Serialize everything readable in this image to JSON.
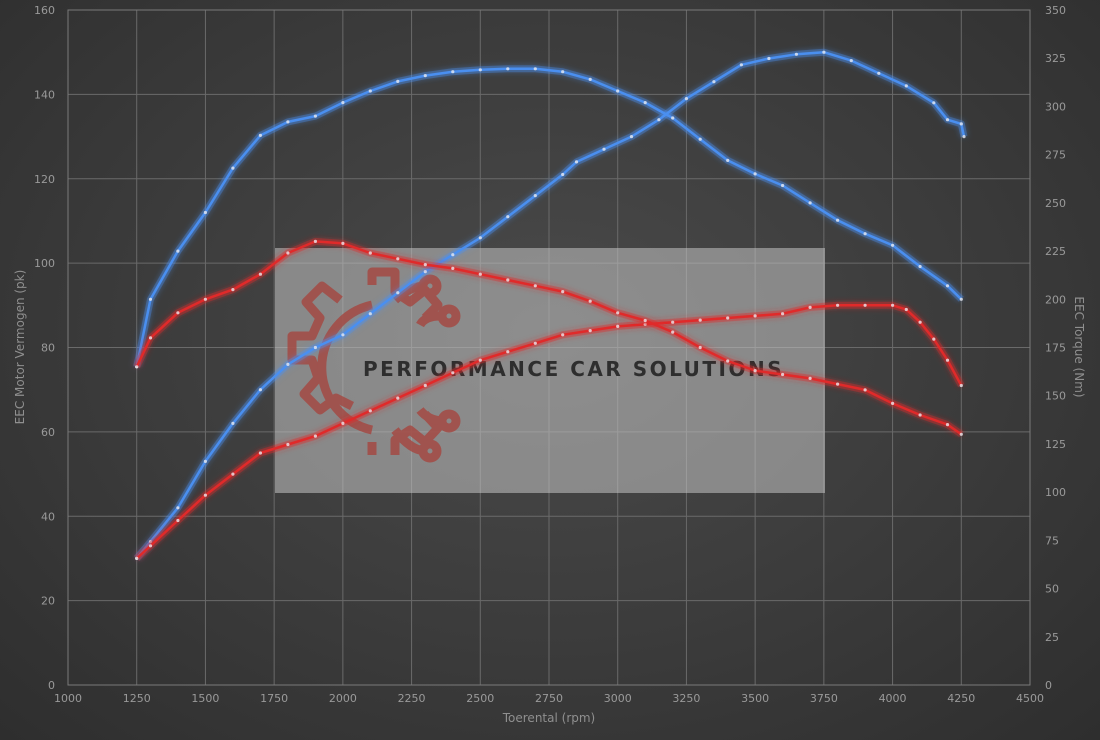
{
  "chart_data": {
    "type": "line",
    "xlabel": "Toerental (rpm)",
    "ylabel_left": "EEC Motor Vermogen (pk)",
    "ylabel_right": "EEC Torque (Nm)",
    "xlim": [
      1000,
      4500
    ],
    "ylim_left": [
      0,
      160
    ],
    "ylim_right": [
      0,
      350
    ],
    "x_ticks": [
      "1000",
      "1250",
      "1500",
      "1750",
      "2000",
      "2250",
      "2500",
      "2750",
      "3000",
      "3250",
      "3500",
      "3750",
      "4000",
      "4250",
      "4500"
    ],
    "y_left_ticks": [
      "0",
      "20",
      "40",
      "60",
      "80",
      "100",
      "120",
      "140",
      "160"
    ],
    "y_right_ticks": [
      "0",
      "25",
      "50",
      "75",
      "100",
      "125",
      "150",
      "175",
      "200",
      "225",
      "250",
      "275",
      "300",
      "325",
      "350"
    ],
    "grid": true,
    "series": [
      {
        "color": "#4a8ff0",
        "axis": "left",
        "points": [
          [
            1250,
            30
          ],
          [
            1300,
            34
          ],
          [
            1400,
            42
          ],
          [
            1500,
            53
          ],
          [
            1600,
            62
          ],
          [
            1700,
            70
          ],
          [
            1800,
            76
          ],
          [
            1900,
            80
          ],
          [
            2000,
            83
          ],
          [
            2100,
            88
          ],
          [
            2200,
            93
          ],
          [
            2300,
            98
          ],
          [
            2400,
            102
          ],
          [
            2500,
            106
          ],
          [
            2600,
            111
          ],
          [
            2700,
            116
          ],
          [
            2800,
            121
          ],
          [
            2850,
            124
          ],
          [
            2950,
            127
          ],
          [
            3050,
            130
          ],
          [
            3150,
            134
          ],
          [
            3250,
            139
          ],
          [
            3350,
            143
          ],
          [
            3450,
            147
          ],
          [
            3550,
            148.5
          ],
          [
            3650,
            149.5
          ],
          [
            3750,
            150
          ],
          [
            3850,
            148
          ],
          [
            3950,
            145
          ],
          [
            4050,
            142
          ],
          [
            4150,
            138
          ],
          [
            4200,
            134
          ],
          [
            4250,
            133
          ],
          [
            4260,
            130
          ]
        ]
      },
      {
        "color": "#4a8ff0",
        "axis": "right",
        "points": [
          [
            1250,
            165
          ],
          [
            1300,
            200
          ],
          [
            1400,
            225
          ],
          [
            1500,
            245
          ],
          [
            1600,
            268
          ],
          [
            1700,
            285
          ],
          [
            1800,
            292
          ],
          [
            1900,
            295
          ],
          [
            2000,
            302
          ],
          [
            2100,
            308
          ],
          [
            2200,
            313
          ],
          [
            2300,
            316
          ],
          [
            2400,
            318
          ],
          [
            2500,
            319
          ],
          [
            2600,
            319.5
          ],
          [
            2700,
            319.5
          ],
          [
            2800,
            318
          ],
          [
            2900,
            314
          ],
          [
            3000,
            308
          ],
          [
            3100,
            302
          ],
          [
            3200,
            294
          ],
          [
            3300,
            283
          ],
          [
            3400,
            272
          ],
          [
            3500,
            265
          ],
          [
            3600,
            259
          ],
          [
            3700,
            250
          ],
          [
            3800,
            241
          ],
          [
            3900,
            234
          ],
          [
            4000,
            228
          ],
          [
            4100,
            217
          ],
          [
            4200,
            207
          ],
          [
            4250,
            200
          ]
        ]
      },
      {
        "color": "#e02a2a",
        "axis": "left",
        "points": [
          [
            1250,
            30
          ],
          [
            1300,
            33
          ],
          [
            1400,
            39
          ],
          [
            1500,
            45
          ],
          [
            1600,
            50
          ],
          [
            1700,
            55
          ],
          [
            1800,
            57
          ],
          [
            1900,
            59
          ],
          [
            2000,
            62
          ],
          [
            2100,
            65
          ],
          [
            2200,
            68
          ],
          [
            2300,
            71
          ],
          [
            2400,
            74
          ],
          [
            2500,
            77
          ],
          [
            2600,
            79
          ],
          [
            2700,
            81
          ],
          [
            2800,
            83
          ],
          [
            2900,
            84
          ],
          [
            3000,
            85
          ],
          [
            3100,
            85.5
          ],
          [
            3200,
            86
          ],
          [
            3300,
            86.5
          ],
          [
            3400,
            87
          ],
          [
            3500,
            87.5
          ],
          [
            3600,
            88
          ],
          [
            3700,
            89.5
          ],
          [
            3800,
            90
          ],
          [
            3900,
            90
          ],
          [
            4000,
            90
          ],
          [
            4050,
            89
          ],
          [
            4100,
            86
          ],
          [
            4150,
            82
          ],
          [
            4200,
            77
          ],
          [
            4250,
            71
          ]
        ]
      },
      {
        "color": "#e02a2a",
        "axis": "right",
        "points": [
          [
            1250,
            165
          ],
          [
            1300,
            180
          ],
          [
            1400,
            193
          ],
          [
            1500,
            200
          ],
          [
            1600,
            205
          ],
          [
            1700,
            213
          ],
          [
            1800,
            224
          ],
          [
            1900,
            230
          ],
          [
            2000,
            229
          ],
          [
            2100,
            224
          ],
          [
            2200,
            221
          ],
          [
            2300,
            218
          ],
          [
            2400,
            216
          ],
          [
            2500,
            213
          ],
          [
            2600,
            210
          ],
          [
            2700,
            207
          ],
          [
            2800,
            204
          ],
          [
            2900,
            199
          ],
          [
            3000,
            193
          ],
          [
            3100,
            189
          ],
          [
            3200,
            183
          ],
          [
            3300,
            175
          ],
          [
            3400,
            168
          ],
          [
            3500,
            163
          ],
          [
            3600,
            161
          ],
          [
            3700,
            159
          ],
          [
            3800,
            156
          ],
          [
            3900,
            153
          ],
          [
            4000,
            146
          ],
          [
            4100,
            140
          ],
          [
            4200,
            135
          ],
          [
            4250,
            130
          ]
        ]
      }
    ]
  },
  "watermark": {
    "text": "PERFORMANCE CAR SOLUTIONS"
  }
}
